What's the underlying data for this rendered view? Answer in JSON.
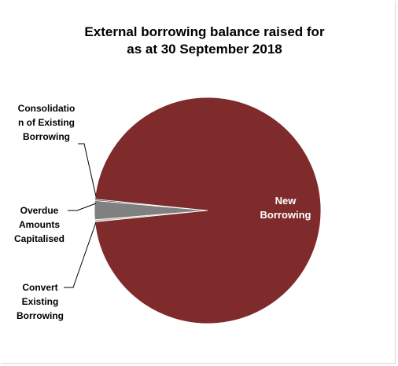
{
  "chart_data": {
    "type": "pie",
    "title_lines": [
      "External borrowing balance raised for",
      "as at 30 September 2018"
    ],
    "slices": [
      {
        "name": "New Borrowing",
        "label_lines": [
          "New",
          "Borrowing"
        ],
        "value": 96.8,
        "color": "#7f2b2b"
      },
      {
        "name": "Consolidation of Existing Borrowing",
        "label_lines": [
          "Consolidatio",
          "n of Existing",
          "Borrowing"
        ],
        "value": 0.3,
        "color": "#bfbfbf"
      },
      {
        "name": "Overdue Amounts Capitalised",
        "label_lines": [
          "Overdue",
          "Amounts",
          "Capitalised"
        ],
        "value": 2.7,
        "color": "#808080"
      },
      {
        "name": "Convert Existing Borrowing",
        "label_lines": [
          "Convert",
          "Existing",
          "Borrowing"
        ],
        "value": 0.2,
        "color": "#404040"
      }
    ],
    "legend": "none",
    "data_labels": "category names"
  }
}
